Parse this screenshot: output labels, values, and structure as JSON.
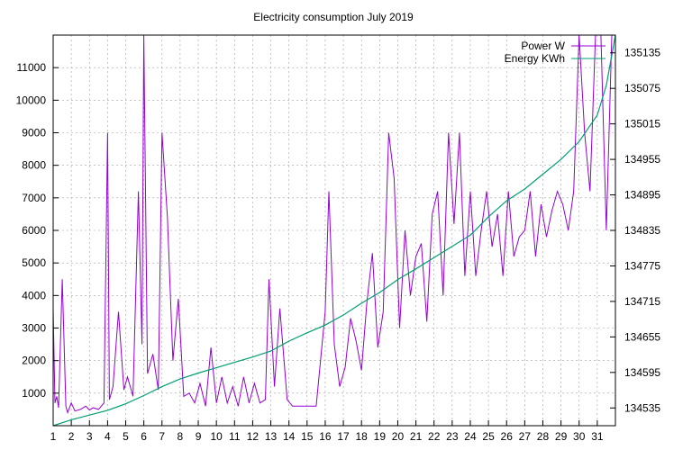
{
  "chart_data": {
    "type": "line",
    "title": "Electricity consumption July 2019",
    "xlabel": "",
    "ylabel": "",
    "y2label": "",
    "x_ticks": [
      "1",
      "2",
      "3",
      "4",
      "5",
      "6",
      "7",
      "8",
      "9",
      "10",
      "11",
      "12",
      "13",
      "14",
      "15",
      "16",
      "17",
      "18",
      "19",
      "20",
      "21",
      "22",
      "23",
      "24",
      "25",
      "26",
      "27",
      "28",
      "29",
      "30",
      "31"
    ],
    "xlim": [
      1,
      32
    ],
    "ylim": [
      0,
      12000
    ],
    "y_ticks": [
      1000,
      2000,
      3000,
      4000,
      5000,
      6000,
      7000,
      8000,
      9000,
      10000,
      11000
    ],
    "y2lim": [
      134505,
      135165
    ],
    "y2_ticks": [
      134535,
      134595,
      134655,
      134715,
      134775,
      134835,
      134895,
      134955,
      135015,
      135075,
      135135
    ],
    "grid": true,
    "legend_position": "top-right",
    "series": [
      {
        "name": "Power W",
        "axis": "left",
        "color": "#9400d3",
        "x": [
          1.0,
          1.1,
          1.2,
          1.3,
          1.5,
          1.7,
          1.8,
          2.0,
          2.2,
          2.5,
          2.8,
          3.0,
          3.2,
          3.5,
          3.8,
          4.0,
          4.1,
          4.3,
          4.6,
          4.9,
          5.1,
          5.4,
          5.7,
          5.9,
          6.0,
          6.2,
          6.5,
          6.8,
          7.0,
          7.3,
          7.6,
          7.9,
          8.2,
          8.5,
          8.8,
          9.1,
          9.4,
          9.7,
          10.0,
          10.3,
          10.6,
          10.9,
          11.2,
          11.5,
          11.8,
          12.1,
          12.4,
          12.7,
          12.9,
          13.2,
          13.5,
          13.9,
          14.2,
          14.5,
          15.0,
          15.5,
          16.0,
          16.2,
          16.5,
          16.8,
          17.1,
          17.4,
          17.7,
          18.0,
          18.3,
          18.6,
          18.9,
          19.2,
          19.5,
          19.8,
          20.1,
          20.4,
          20.7,
          21.0,
          21.3,
          21.6,
          21.9,
          22.2,
          22.5,
          22.8,
          23.1,
          23.4,
          23.7,
          24.0,
          24.3,
          24.6,
          24.9,
          25.2,
          25.5,
          25.8,
          26.1,
          26.4,
          26.7,
          27.0,
          27.3,
          27.6,
          27.9,
          28.2,
          28.5,
          28.8,
          29.1,
          29.4,
          29.7,
          30.0,
          30.3,
          30.6,
          30.9,
          31.2,
          31.5,
          31.8
        ],
        "values": [
          3600,
          700,
          900,
          550,
          4500,
          600,
          400,
          700,
          450,
          500,
          600,
          480,
          550,
          500,
          700,
          9000,
          800,
          1200,
          3500,
          1100,
          1500,
          900,
          7200,
          2500,
          12000,
          1600,
          2200,
          1100,
          9000,
          6400,
          2000,
          3900,
          900,
          1000,
          700,
          1300,
          600,
          2400,
          700,
          1500,
          700,
          1200,
          600,
          1500,
          700,
          1300,
          700,
          800,
          4500,
          1200,
          3600,
          800,
          600,
          600,
          600,
          600,
          3500,
          7200,
          2500,
          1200,
          1800,
          3300,
          2600,
          1700,
          3800,
          5300,
          2400,
          3500,
          9000,
          7600,
          3000,
          6000,
          4000,
          5200,
          5600,
          3200,
          6500,
          7200,
          4000,
          9000,
          6200,
          9000,
          4600,
          7200,
          4600,
          6000,
          7200,
          5500,
          6500,
          4600,
          7200,
          5200,
          5800,
          6000,
          7200,
          5200,
          6800,
          5800,
          6600,
          7200,
          6800,
          6000,
          7200,
          12000,
          9000,
          7200,
          12000,
          12000,
          6000,
          12000
        ]
      },
      {
        "name": "Energy KWh",
        "axis": "right",
        "color": "#009e73",
        "x": [
          1.0,
          2.0,
          3.0,
          4.0,
          5.0,
          6.0,
          7.0,
          8.0,
          9.0,
          10.0,
          11.0,
          12.0,
          13.0,
          14.0,
          15.0,
          16.0,
          17.0,
          18.0,
          19.0,
          20.0,
          21.0,
          22.0,
          23.0,
          24.0,
          25.0,
          26.0,
          27.0,
          28.0,
          29.0,
          30.0,
          31.0,
          31.5,
          32.0
        ],
        "values": [
          134505,
          134515,
          134523,
          134531,
          134542,
          134556,
          134571,
          134584,
          134594,
          134603,
          134612,
          134621,
          134631,
          134648,
          134662,
          134675,
          134692,
          134712,
          134730,
          134752,
          134770,
          134789,
          134808,
          134827,
          134858,
          134885,
          134905,
          134930,
          134955,
          134985,
          135030,
          135080,
          135165
        ]
      }
    ]
  }
}
